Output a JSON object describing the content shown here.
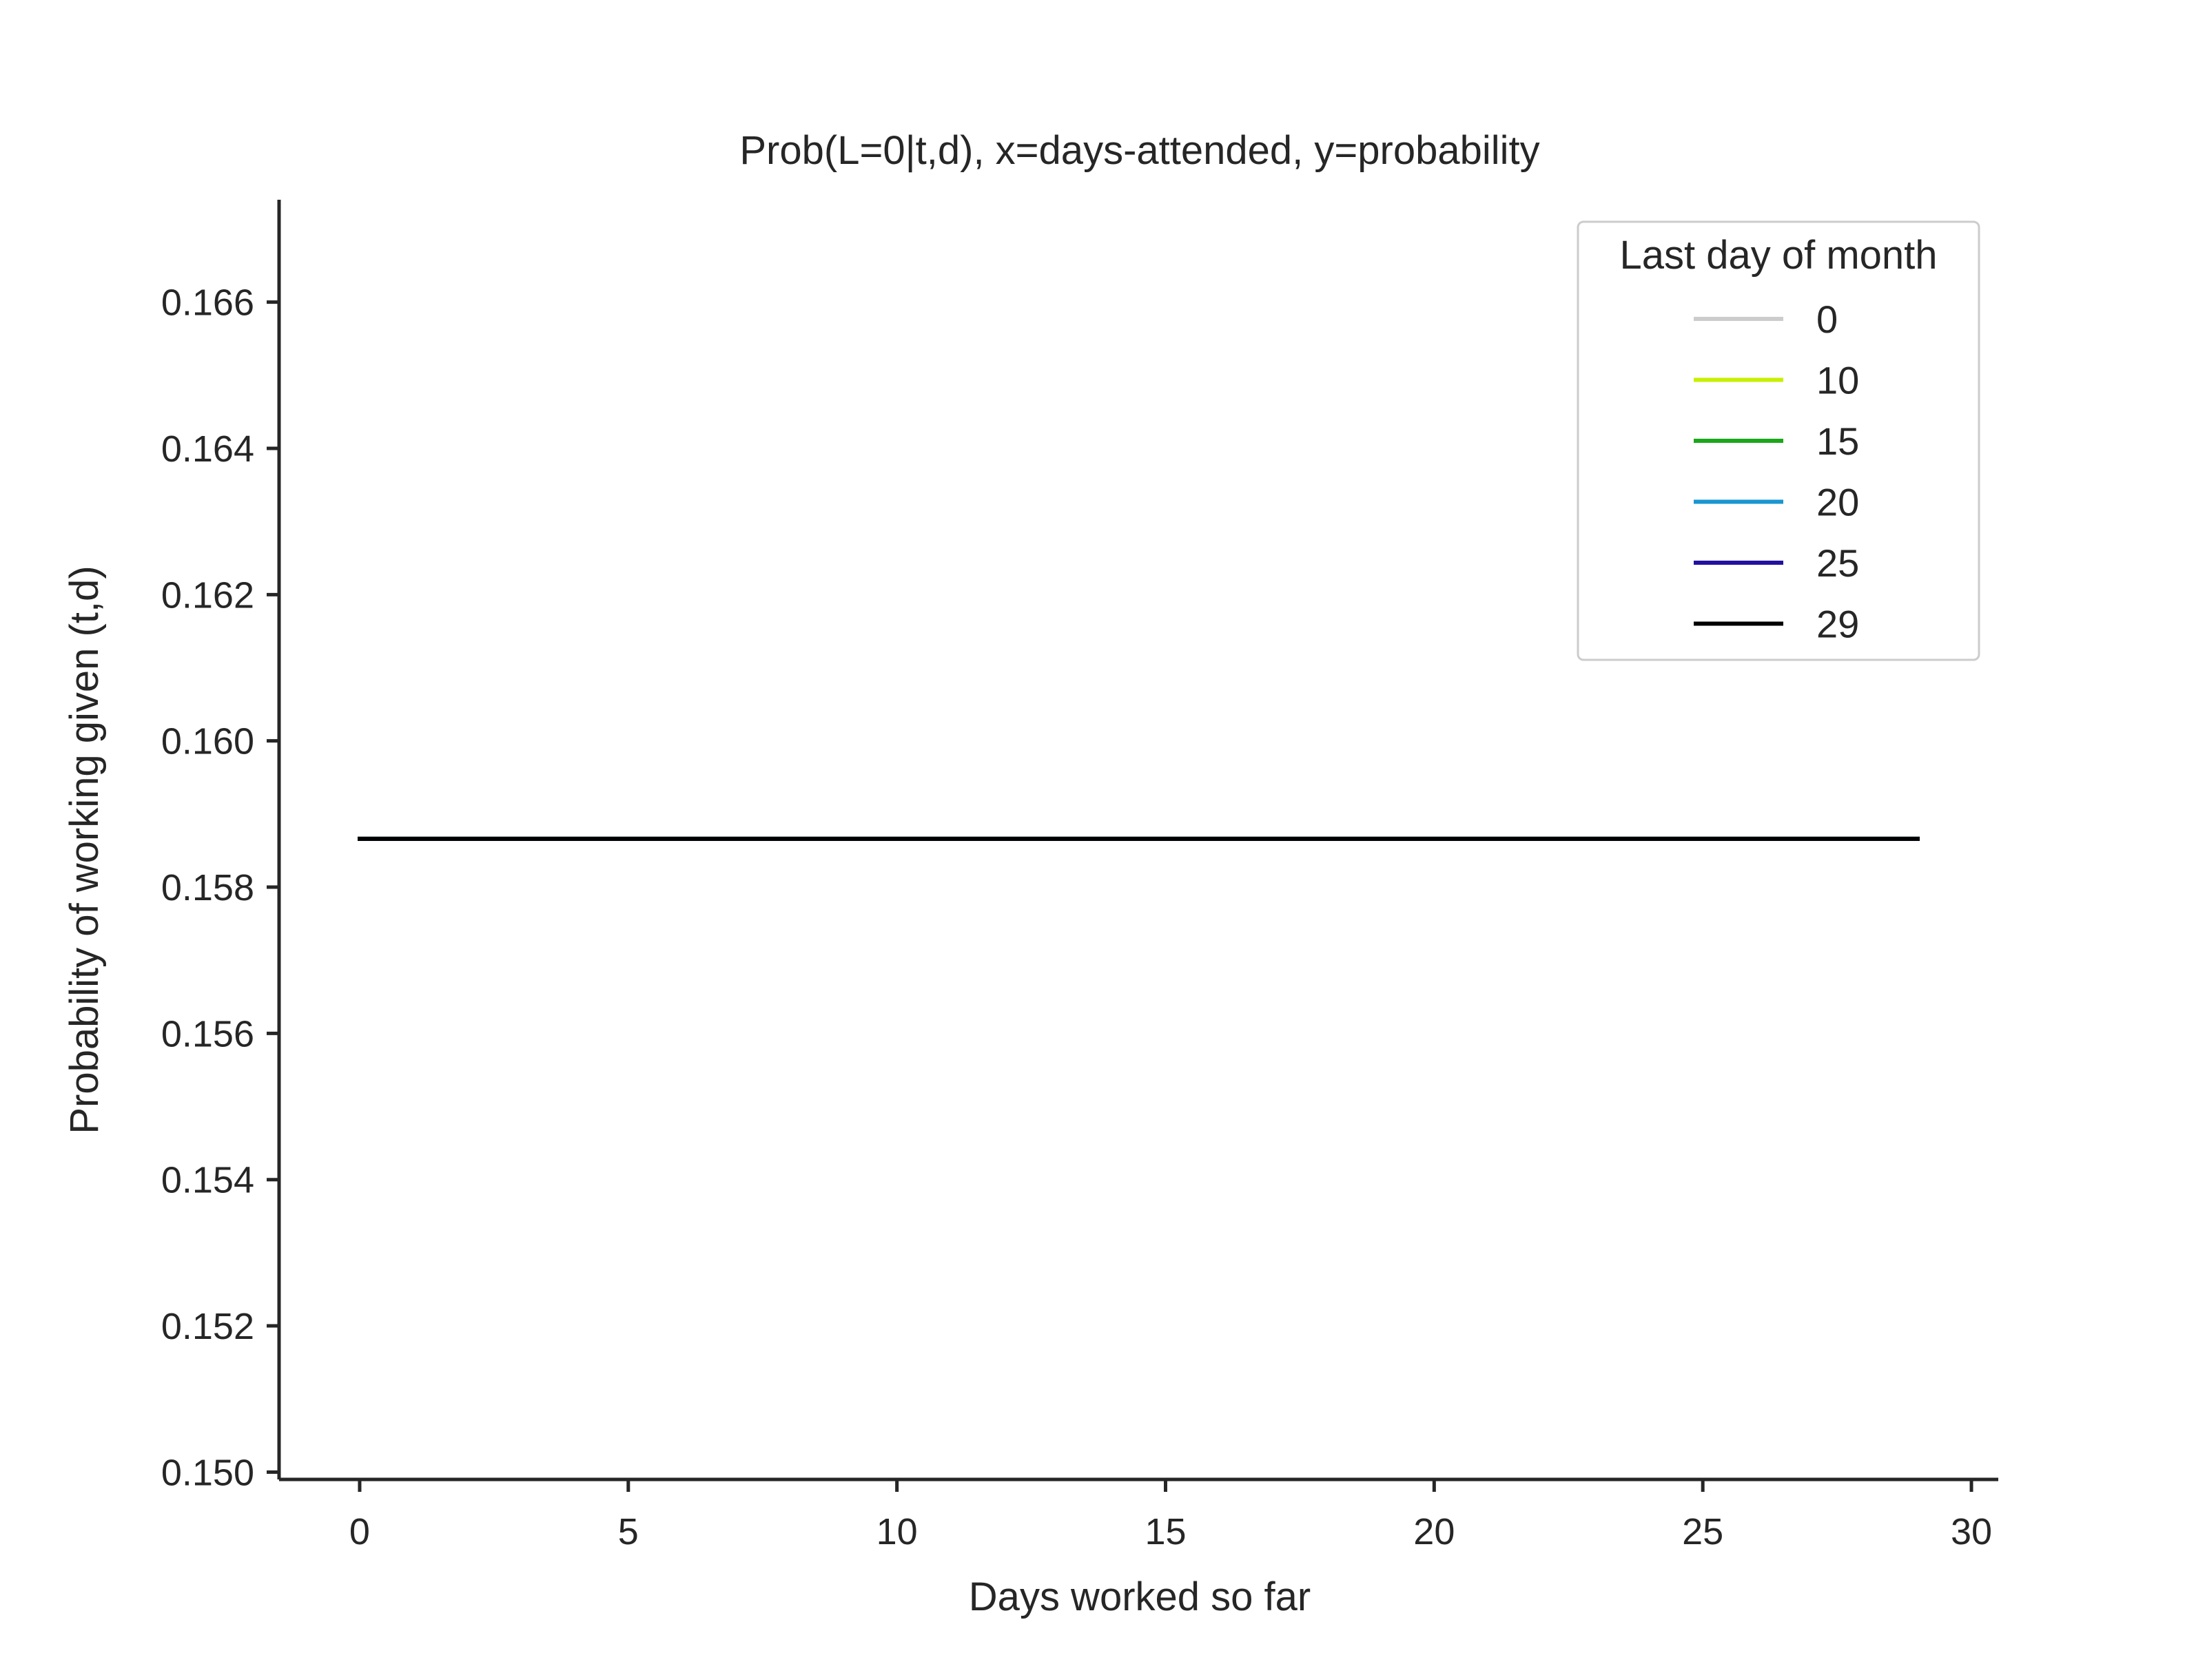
{
  "chart_data": {
    "type": "line",
    "title": "Prob(L=0|t,d), x=days-attended, y=probability",
    "xlabel": "Days worked so far",
    "ylabel": "Probability of working given (t,d)",
    "xlim": [
      -1.5,
      30.5
    ],
    "ylim": [
      0.1499,
      0.1674
    ],
    "xticks": [
      0,
      5,
      10,
      15,
      20,
      25,
      30
    ],
    "xtick_labels": [
      "0",
      "5",
      "10",
      "15",
      "20",
      "25",
      "30"
    ],
    "yticks": [
      0.15,
      0.152,
      0.154,
      0.156,
      0.158,
      0.16,
      0.162,
      0.164,
      0.166
    ],
    "ytick_labels": [
      "0.150",
      "0.152",
      "0.154",
      "0.156",
      "0.158",
      "0.160",
      "0.162",
      "0.164",
      "0.166"
    ],
    "grid": false,
    "legend": {
      "title": "Last day of month",
      "placement": "top-right",
      "entries": [
        "0",
        "10",
        "15",
        "20",
        "25",
        "29"
      ]
    },
    "series": [
      {
        "name": "0",
        "color": "#cccccc",
        "x": [
          0,
          29
        ],
        "y": [
          0.15866,
          0.15866
        ]
      },
      {
        "name": "10",
        "color": "#c8f000",
        "x": [
          0,
          29
        ],
        "y": [
          0.15866,
          0.15866
        ]
      },
      {
        "name": "15",
        "color": "#1aa81a",
        "x": [
          0,
          29
        ],
        "y": [
          0.15866,
          0.15866
        ]
      },
      {
        "name": "20",
        "color": "#1a96d2",
        "x": [
          0,
          29
        ],
        "y": [
          0.15866,
          0.15866
        ]
      },
      {
        "name": "25",
        "color": "#22119e",
        "x": [
          0,
          29
        ],
        "y": [
          0.15866,
          0.15866
        ]
      },
      {
        "name": "29",
        "color": "#000000",
        "x": [
          0,
          29
        ],
        "y": [
          0.15866,
          0.15866
        ]
      }
    ]
  }
}
